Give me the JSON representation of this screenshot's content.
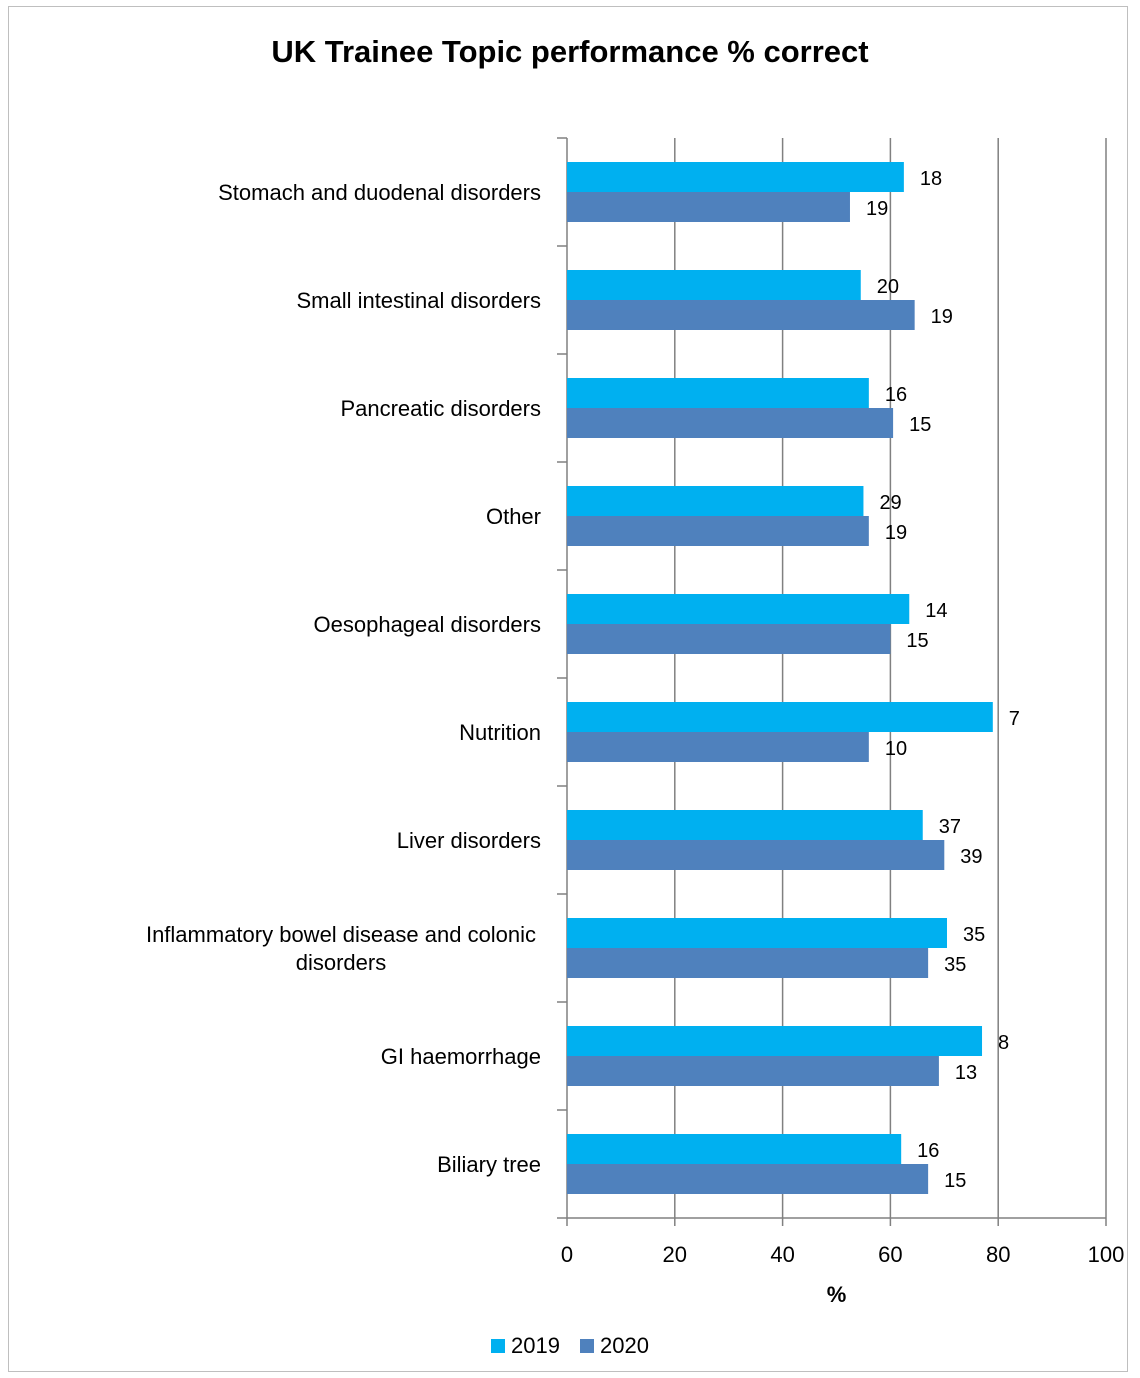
{
  "chart_data": {
    "type": "bar",
    "orientation": "horizontal",
    "title": "UK Trainee Topic performance % correct",
    "xlabel": "%",
    "ylabel": "",
    "xlim": [
      0,
      100
    ],
    "xticks": [
      "0",
      "20",
      "40",
      "60",
      "80",
      "100"
    ],
    "grid": true,
    "legend_position": "bottom",
    "categories": [
      "Stomach and duodenal disorders",
      "Small intestinal disorders",
      "Pancreatic disorders",
      "Other",
      "Oesophageal disorders",
      "Nutrition",
      "Liver disorders",
      "Inflammatory bowel disease and colonic disorders",
      "GI haemorrhage",
      "Biliary tree"
    ],
    "series": [
      {
        "name": "2019",
        "color": "#00b0f0",
        "values": [
          62.5,
          54.5,
          56,
          55,
          63.5,
          79,
          66,
          70.5,
          77,
          62
        ],
        "labels": [
          "18",
          "20",
          "16",
          "29",
          "14",
          "7",
          "37",
          "35",
          "8",
          "16"
        ]
      },
      {
        "name": "2020",
        "color": "#4f81bd",
        "values": [
          52.5,
          64.5,
          60.5,
          56,
          60,
          56,
          70,
          67,
          69,
          67
        ],
        "labels": [
          "19",
          "19",
          "15",
          "19",
          "15",
          "10",
          "39",
          "35",
          "13",
          "15"
        ]
      }
    ]
  }
}
